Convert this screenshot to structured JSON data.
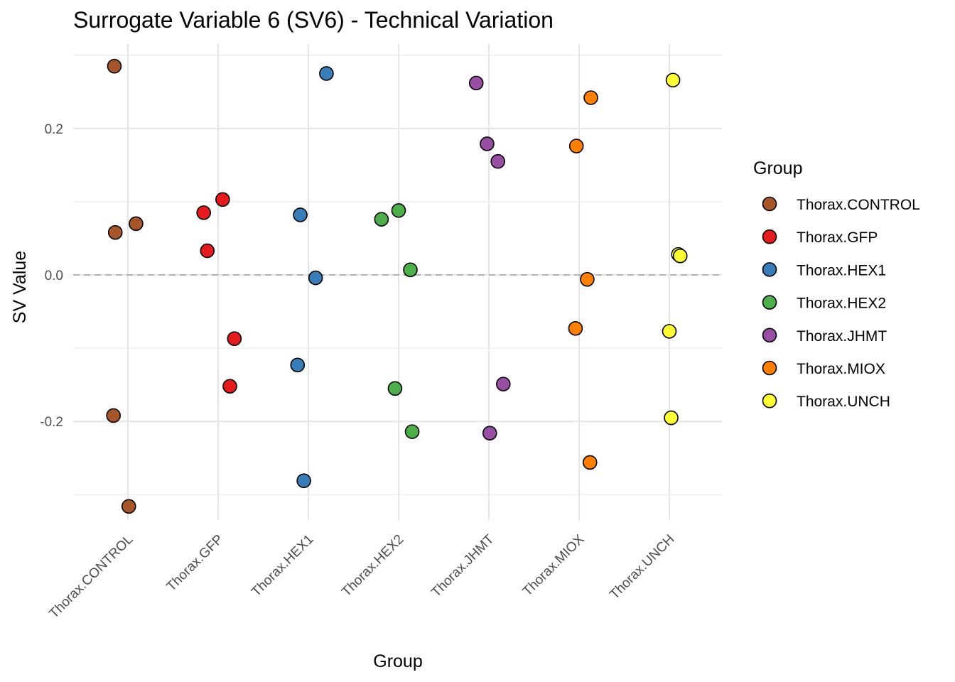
{
  "chart_data": {
    "type": "scatter",
    "title": "Surrogate Variable 6 (SV6) - Technical Variation",
    "xlabel": "Group",
    "ylabel": "SV Value",
    "categories": [
      "Thorax.CONTROL",
      "Thorax.GFP",
      "Thorax.HEX1",
      "Thorax.HEX2",
      "Thorax.JHMT",
      "Thorax.MIOX",
      "Thorax.UNCH"
    ],
    "ylim": [
      -0.35,
      0.305
    ],
    "yticks": [
      -0.2,
      0.0,
      0.2
    ],
    "ytick_labels": [
      "-0.2",
      "0.0",
      "0.2"
    ],
    "reference_line": 0.0,
    "grid": true,
    "legend": {
      "title": "Group",
      "position": "right",
      "entries": [
        "Thorax.CONTROL",
        "Thorax.GFP",
        "Thorax.HEX1",
        "Thorax.HEX2",
        "Thorax.JHMT",
        "Thorax.MIOX",
        "Thorax.UNCH"
      ]
    },
    "colors": {
      "Thorax.CONTROL": "#a65628",
      "Thorax.GFP": "#e41a1c",
      "Thorax.HEX1": "#377eb8",
      "Thorax.HEX2": "#4daf4a",
      "Thorax.JHMT": "#984ea3",
      "Thorax.MIOX": "#ff7f00",
      "Thorax.UNCH": "#ffff33"
    },
    "series": [
      {
        "name": "Thorax.CONTROL",
        "x_jitter": [
          -0.15,
          -0.14,
          0.09,
          -0.16,
          0.01
        ],
        "values": [
          0.285,
          0.058,
          0.07,
          -0.192,
          -0.316
        ]
      },
      {
        "name": "Thorax.GFP",
        "x_jitter": [
          -0.16,
          0.05,
          -0.12,
          0.18,
          0.13
        ],
        "values": [
          0.085,
          0.103,
          0.033,
          -0.087,
          -0.152
        ]
      },
      {
        "name": "Thorax.HEX1",
        "x_jitter": [
          0.2,
          -0.09,
          0.08,
          -0.12,
          -0.05
        ],
        "values": [
          0.275,
          0.082,
          -0.004,
          -0.123,
          -0.281
        ]
      },
      {
        "name": "Thorax.HEX2",
        "x_jitter": [
          -0.19,
          0.0,
          0.13,
          -0.04,
          0.15
        ],
        "values": [
          0.076,
          0.088,
          0.007,
          -0.155,
          -0.214
        ]
      },
      {
        "name": "Thorax.JHMT",
        "x_jitter": [
          -0.14,
          -0.02,
          0.1,
          0.16,
          0.01
        ],
        "values": [
          0.262,
          0.179,
          0.155,
          -0.149,
          -0.216
        ]
      },
      {
        "name": "Thorax.MIOX",
        "x_jitter": [
          0.13,
          -0.03,
          0.09,
          -0.04,
          0.12
        ],
        "values": [
          0.242,
          0.176,
          -0.006,
          -0.073,
          -0.256
        ]
      },
      {
        "name": "Thorax.UNCH",
        "x_jitter": [
          0.04,
          0.1,
          0.12,
          0.0,
          0.02
        ],
        "values": [
          0.266,
          0.028,
          0.026,
          -0.077,
          -0.195
        ]
      }
    ]
  }
}
